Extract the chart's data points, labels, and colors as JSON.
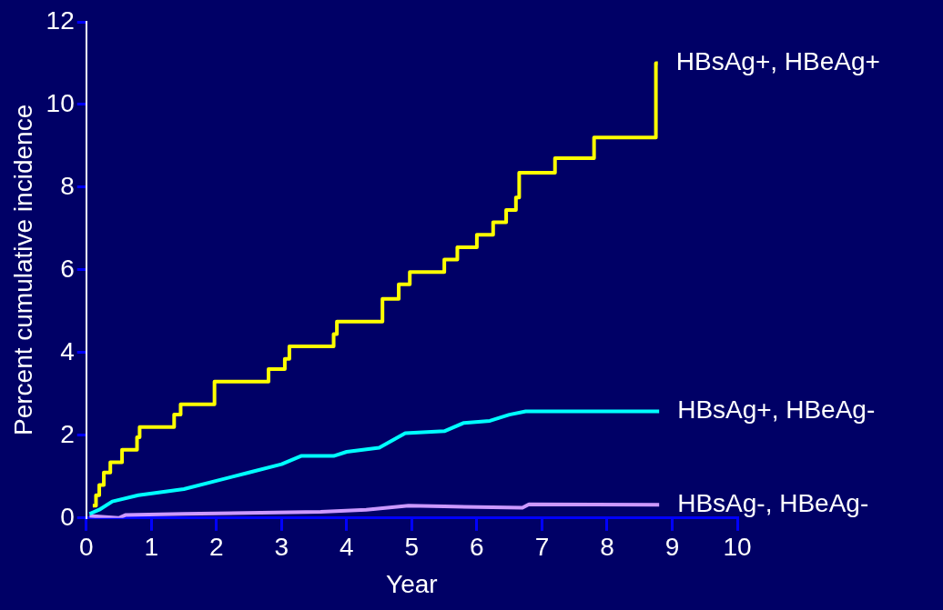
{
  "chart_data": {
    "type": "step",
    "xlabel": "Year",
    "ylabel": "Percent cumulative incidence",
    "xlim": [
      0,
      10
    ],
    "xticks": [
      0,
      1,
      2,
      3,
      4,
      5,
      6,
      7,
      8,
      9,
      10
    ],
    "ylim": [
      0,
      12
    ],
    "yticks": [
      0,
      2,
      4,
      6,
      8,
      10,
      12
    ],
    "grid": false,
    "legend": false,
    "marker": "none",
    "line_style": "solid",
    "series": [
      {
        "name": "HBsAg+, HBeAg+",
        "color": "#ffff00",
        "x": [
          0.1,
          0.15,
          0.2,
          0.27,
          0.37,
          0.55,
          0.78,
          0.82,
          1.35,
          1.45,
          1.97,
          2.8,
          3.05,
          3.12,
          3.8,
          3.85,
          4.55,
          4.8,
          4.97,
          5.5,
          5.7,
          6.0,
          6.25,
          6.45,
          6.6,
          6.65,
          7.2,
          7.8,
          8.75,
          8.78
        ],
        "values": [
          0.3,
          0.55,
          0.8,
          1.1,
          1.35,
          1.65,
          1.95,
          2.2,
          2.5,
          2.75,
          3.3,
          3.6,
          3.85,
          4.15,
          4.45,
          4.75,
          5.3,
          5.65,
          5.95,
          6.25,
          6.55,
          6.85,
          7.15,
          7.45,
          7.75,
          8.35,
          8.7,
          9.2,
          11.0,
          11.0
        ]
      },
      {
        "name": "HBsAg+, HBeAg-",
        "type": "line",
        "color": "#00ffff",
        "x": [
          0.05,
          0.2,
          0.4,
          0.8,
          1.5,
          2.0,
          2.5,
          3.0,
          3.3,
          3.8,
          4.0,
          4.5,
          4.9,
          5.5,
          5.8,
          6.2,
          6.5,
          6.75,
          8.8
        ],
        "values": [
          0.1,
          0.2,
          0.4,
          0.55,
          0.7,
          0.9,
          1.1,
          1.3,
          1.5,
          1.5,
          1.6,
          1.7,
          2.05,
          2.1,
          2.3,
          2.35,
          2.5,
          2.58,
          2.58
        ]
      },
      {
        "name": "HBsAg-, HBeAg-",
        "type": "line",
        "color": "#cc99ff",
        "x": [
          0.05,
          0.5,
          0.6,
          1.5,
          3.6,
          4.3,
          4.95,
          5.5,
          6.7,
          6.8,
          8.8
        ],
        "values": [
          0.05,
          0.0,
          0.07,
          0.1,
          0.15,
          0.2,
          0.3,
          0.28,
          0.25,
          0.33,
          0.32
        ]
      }
    ]
  }
}
